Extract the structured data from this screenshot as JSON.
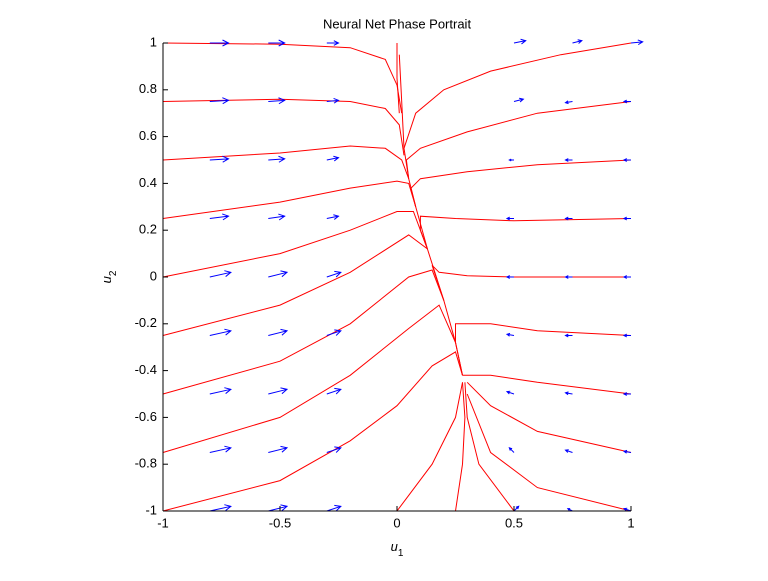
{
  "chart_data": {
    "type": "phase-portrait",
    "title": "Neural Net Phase Portrait",
    "xlabel": {
      "base": "u",
      "subscript": "1"
    },
    "ylabel": {
      "base": "u",
      "subscript": "2"
    },
    "xlim": [
      -1,
      1
    ],
    "ylim": [
      -1,
      1
    ],
    "xticks": [
      -1,
      -0.5,
      0,
      0.5,
      1
    ],
    "yticks": [
      -1,
      -0.8,
      -0.6,
      -0.4,
      -0.2,
      0,
      0.2,
      0.4,
      0.6,
      0.8,
      1
    ],
    "series": [
      {
        "color": "#ff0000",
        "x": [
          0.01,
          0.02,
          0.03,
          0.05,
          0.08,
          0.13,
          0.2,
          0.25,
          0.28
        ],
        "values": [
          0.95,
          0.75,
          0.55,
          0.42,
          0.3,
          0.12,
          -0.1,
          -0.28,
          -0.42
        ]
      },
      {
        "color": "#ff0000",
        "x": [
          -1,
          -0.5,
          -0.2,
          -0.05,
          0,
          0.02
        ],
        "values": [
          1,
          0.995,
          0.98,
          0.93,
          0.82,
          0.7
        ]
      },
      {
        "color": "#ff0000",
        "x": [
          -1,
          -0.5,
          -0.2,
          -0.05,
          0.01,
          0.03
        ],
        "values": [
          0.75,
          0.76,
          0.75,
          0.72,
          0.65,
          0.52
        ]
      },
      {
        "color": "#ff0000",
        "x": [
          -1,
          -0.5,
          -0.2,
          -0.05,
          0.02,
          0.05
        ],
        "values": [
          0.5,
          0.53,
          0.56,
          0.55,
          0.5,
          0.42
        ]
      },
      {
        "color": "#ff0000",
        "x": [
          -1,
          -0.5,
          -0.2,
          0,
          0.05,
          0.08
        ],
        "values": [
          0.25,
          0.32,
          0.38,
          0.41,
          0.4,
          0.3
        ]
      },
      {
        "color": "#ff0000",
        "x": [
          -1,
          -0.5,
          -0.2,
          0,
          0.07,
          0.13
        ],
        "values": [
          0,
          0.1,
          0.2,
          0.28,
          0.28,
          0.12
        ]
      },
      {
        "color": "#ff0000",
        "x": [
          -1,
          -0.5,
          -0.2,
          0.05,
          0.13
        ],
        "values": [
          -0.25,
          -0.12,
          0.02,
          0.18,
          0.12
        ]
      },
      {
        "color": "#ff0000",
        "x": [
          -1,
          -0.5,
          -0.2,
          0.05,
          0.15,
          0.2
        ],
        "values": [
          -0.5,
          -0.36,
          -0.2,
          0,
          0.03,
          -0.1
        ]
      },
      {
        "color": "#ff0000",
        "x": [
          -1,
          -0.5,
          -0.2,
          0.05,
          0.18,
          0.25
        ],
        "values": [
          -0.75,
          -0.6,
          -0.42,
          -0.22,
          -0.12,
          -0.28
        ]
      },
      {
        "color": "#ff0000",
        "x": [
          -1,
          -0.5,
          -0.2,
          0,
          0.15,
          0.25,
          0.28
        ],
        "values": [
          -1,
          -0.87,
          -0.7,
          -0.55,
          -0.38,
          -0.32,
          -0.42
        ]
      },
      {
        "color": "#ff0000",
        "x": [
          1,
          0.7,
          0.4,
          0.2,
          0.08,
          0.03
        ],
        "values": [
          1,
          0.95,
          0.88,
          0.8,
          0.7,
          0.55
        ]
      },
      {
        "color": "#ff0000",
        "x": [
          1,
          0.6,
          0.3,
          0.1,
          0.04,
          0.05
        ],
        "values": [
          0.75,
          0.7,
          0.62,
          0.55,
          0.5,
          0.42
        ]
      },
      {
        "color": "#ff0000",
        "x": [
          1,
          0.6,
          0.3,
          0.1,
          0.06,
          0.08
        ],
        "values": [
          0.5,
          0.48,
          0.45,
          0.42,
          0.38,
          0.3
        ]
      },
      {
        "color": "#ff0000",
        "x": [
          1,
          0.5,
          0.25,
          0.1,
          0.1,
          0.13
        ],
        "values": [
          0.25,
          0.24,
          0.25,
          0.26,
          0.2,
          0.12
        ]
      },
      {
        "color": "#ff0000",
        "x": [
          1,
          0.5,
          0.3,
          0.18,
          0.15,
          0.2
        ],
        "values": [
          0,
          0,
          0.005,
          0.02,
          0.05,
          -0.1
        ]
      },
      {
        "color": "#ff0000",
        "x": [
          1,
          0.6,
          0.4,
          0.25,
          0.25,
          0.28
        ],
        "values": [
          -0.25,
          -0.23,
          -0.2,
          -0.2,
          -0.28,
          -0.42
        ]
      },
      {
        "color": "#ff0000",
        "x": [
          1,
          0.6,
          0.4,
          0.28
        ],
        "values": [
          -0.5,
          -0.45,
          -0.42,
          -0.42
        ]
      },
      {
        "color": "#ff0000",
        "x": [
          1,
          0.6,
          0.4,
          0.3
        ],
        "values": [
          -0.75,
          -0.66,
          -0.55,
          -0.45
        ]
      },
      {
        "color": "#ff0000",
        "x": [
          1,
          0.6,
          0.4,
          0.3
        ],
        "values": [
          -1,
          -0.9,
          -0.75,
          -0.5
        ]
      },
      {
        "color": "#ff0000",
        "x": [
          0.25,
          0.28,
          0.29,
          0.28
        ],
        "values": [
          -1,
          -0.8,
          -0.6,
          -0.45
        ]
      },
      {
        "color": "#ff0000",
        "x": [
          0,
          0.15,
          0.25,
          0.28
        ],
        "values": [
          -1,
          -0.8,
          -0.6,
          -0.45
        ]
      },
      {
        "color": "#ff0000",
        "x": [
          0.5,
          0.35,
          0.3,
          0.29
        ],
        "values": [
          -1,
          -0.8,
          -0.6,
          -0.45
        ]
      },
      {
        "color": "#ff0000",
        "x": [
          0,
          0,
          0.01
        ],
        "values": [
          1,
          0.85,
          0.7
        ]
      }
    ],
    "quiver": {
      "color": "#0000ff",
      "x": [
        -0.8,
        -0.55,
        -0.3,
        0.5,
        0.75,
        1,
        -0.8,
        -0.55,
        -0.3,
        0.5,
        0.75,
        1,
        -0.8,
        -0.55,
        -0.3,
        0.5,
        0.75,
        1,
        -0.8,
        -0.55,
        -0.3,
        0.5,
        0.75,
        1,
        -0.8,
        -0.55,
        -0.3,
        0.5,
        0.75,
        1,
        -0.8,
        -0.55,
        -0.3,
        0.5,
        0.75,
        1,
        -0.8,
        -0.55,
        -0.3,
        0.5,
        0.75,
        1,
        -0.8,
        -0.55,
        -0.3,
        0.5,
        0.75,
        1,
        -0.8,
        -0.55,
        -0.3,
        0.5,
        0.75,
        1
      ],
      "y": [
        1,
        1,
        1,
        1,
        1,
        1,
        0.75,
        0.75,
        0.75,
        0.75,
        0.75,
        0.75,
        0.5,
        0.5,
        0.5,
        0.5,
        0.5,
        0.5,
        0.25,
        0.25,
        0.25,
        0.25,
        0.25,
        0.25,
        0,
        0,
        0,
        0,
        0,
        0,
        -0.25,
        -0.25,
        -0.25,
        -0.25,
        -0.25,
        -0.25,
        -0.5,
        -0.5,
        -0.5,
        -0.5,
        -0.5,
        -0.5,
        -0.75,
        -0.75,
        -0.75,
        -0.75,
        -0.75,
        -0.75,
        -1,
        -1,
        -1,
        -1,
        -1,
        -1
      ],
      "u": [
        0.08,
        0.07,
        0.05,
        0.05,
        0.04,
        0.05,
        0.08,
        0.07,
        0.05,
        0.04,
        -0.03,
        -0.03,
        0.08,
        0.07,
        0.05,
        -0.02,
        -0.03,
        -0.03,
        0.08,
        0.07,
        0.05,
        -0.03,
        -0.03,
        -0.03,
        0.09,
        0.08,
        0.06,
        -0.03,
        -0.03,
        -0.03,
        0.09,
        0.08,
        0.06,
        -0.03,
        -0.03,
        -0.03,
        0.09,
        0.08,
        0.06,
        -0.03,
        -0.03,
        -0.03,
        0.09,
        0.08,
        0.06,
        -0.02,
        -0.03,
        -0.03,
        0.09,
        0.08,
        0.06,
        0.02,
        -0.02,
        -0.03
      ],
      "v": [
        0,
        0,
        0,
        0.01,
        0.01,
        0.005,
        0.005,
        0.005,
        0.005,
        0.01,
        -0.005,
        0,
        0.005,
        0.005,
        0.01,
        0,
        0,
        0,
        0.01,
        0.01,
        0.01,
        0,
        0,
        0,
        0.02,
        0.02,
        0.02,
        0,
        0,
        0,
        0.02,
        0.02,
        0.02,
        0.005,
        0,
        0,
        0.02,
        0.02,
        0.02,
        0.01,
        0.005,
        0,
        0.02,
        0.02,
        0.02,
        0.02,
        0.01,
        0.005,
        0.02,
        0.02,
        0.02,
        0.02,
        0.01,
        0.01
      ]
    }
  }
}
